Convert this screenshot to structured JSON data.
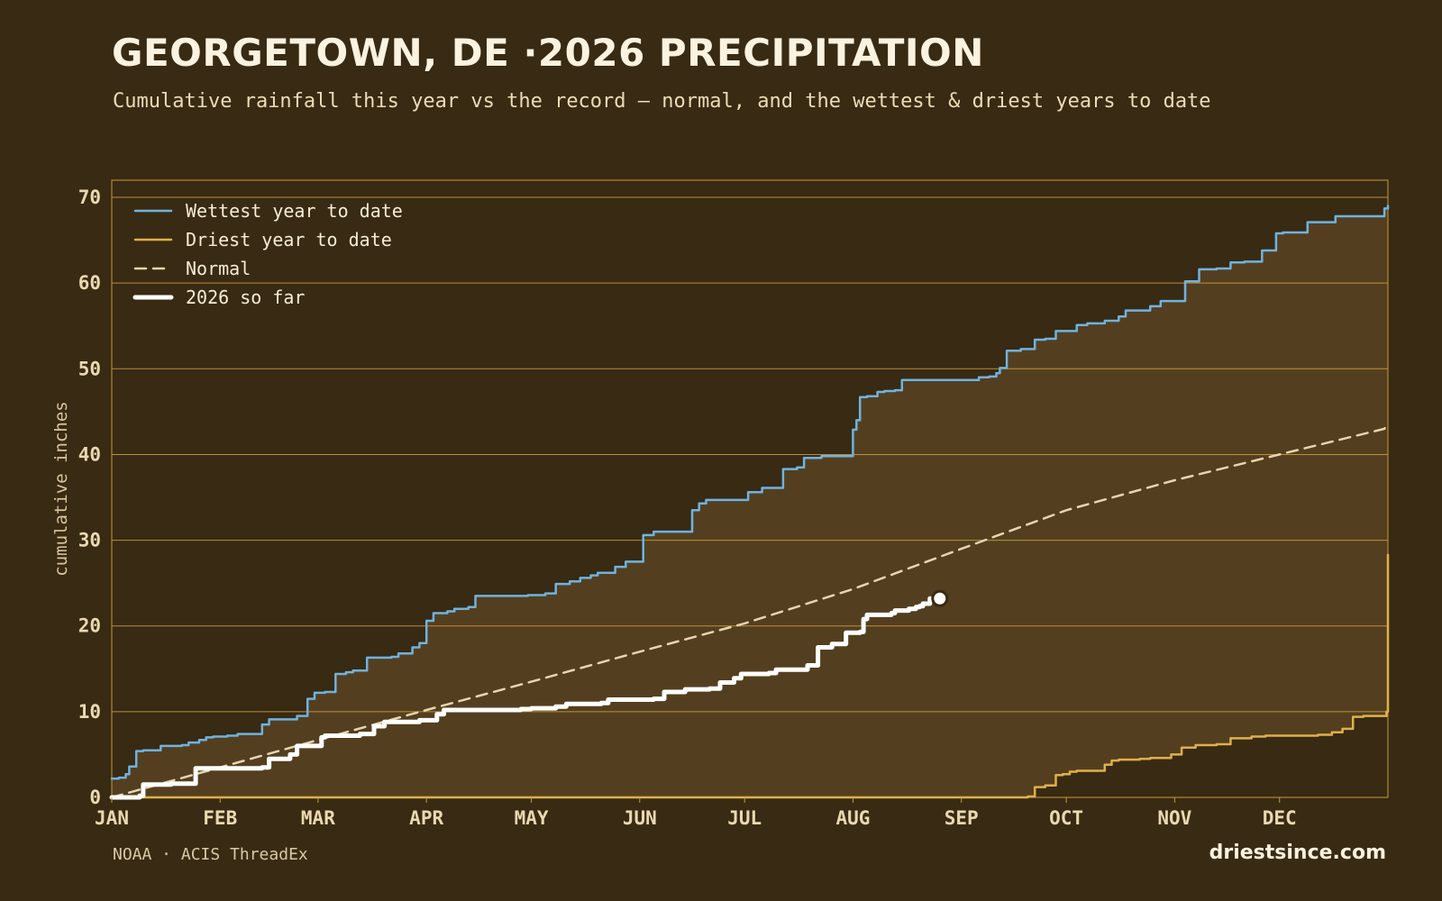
{
  "header": {
    "title": "GEORGETOWN, DE ·2026 PRECIPITATION",
    "subtitle": "Cumulative rainfall this year vs the record — normal, and the wettest & driest years to date"
  },
  "footer": {
    "source": "NOAA · ACIS ThreadEx",
    "site": "driestsince.com"
  },
  "colors": {
    "background": "#382a13",
    "band_fill": "#533f1f",
    "grid": "#c9993a",
    "wettest": "#6fb3e0",
    "driest": "#e0b04a",
    "normal": "#e6d5ae",
    "current": "#ffffff"
  },
  "chart_data": {
    "type": "line",
    "title": "GEORGETOWN, DE ·2026 PRECIPITATION",
    "ylabel": "cumulative inches",
    "xlabel": "",
    "x_unit": "day of year",
    "xlim": [
      0,
      365
    ],
    "ylim": [
      0,
      72
    ],
    "yticks": [
      0,
      10,
      20,
      30,
      40,
      50,
      60,
      70
    ],
    "month_ticks": [
      {
        "label": "JAN",
        "day": 0
      },
      {
        "label": "FEB",
        "day": 31
      },
      {
        "label": "MAR",
        "day": 59
      },
      {
        "label": "APR",
        "day": 90
      },
      {
        "label": "MAY",
        "day": 120
      },
      {
        "label": "JUN",
        "day": 151
      },
      {
        "label": "JUL",
        "day": 181
      },
      {
        "label": "AUG",
        "day": 212
      },
      {
        "label": "SEP",
        "day": 243
      },
      {
        "label": "OCT",
        "day": 273
      },
      {
        "label": "NOV",
        "day": 304
      },
      {
        "label": "DEC",
        "day": 334
      }
    ],
    "legend_position": "top-left",
    "grid": "horizontal",
    "shaded_band": "between wettest and driest",
    "series": [
      {
        "name": "Wettest year to date",
        "style": "step",
        "x": [
          0,
          2,
          4,
          5,
          7,
          9,
          13,
          14,
          20,
          22,
          25,
          27,
          29,
          33,
          36,
          39,
          43,
          45,
          48,
          53,
          56,
          58,
          61,
          64,
          67,
          69,
          73,
          80,
          82,
          86,
          88,
          90,
          92,
          96,
          98,
          102,
          104,
          119,
          124,
          127,
          131,
          134,
          137,
          139,
          144,
          147,
          152,
          154,
          155,
          157,
          166,
          168,
          170,
          182,
          186,
          192,
          196,
          198,
          203,
          212,
          213,
          214,
          216,
          219,
          221,
          224,
          226,
          243,
          248,
          251,
          253,
          254,
          256,
          260,
          264,
          267,
          270,
          276,
          279,
          284,
          288,
          290,
          292,
          297,
          300,
          307,
          311,
          316,
          320,
          324,
          329,
          333,
          335,
          339,
          342,
          350,
          351,
          354,
          362,
          364,
          365
        ],
        "values": [
          2.2,
          2.3,
          2.7,
          3.6,
          5.4,
          5.5,
          5.5,
          6.0,
          6.1,
          6.4,
          6.7,
          7.0,
          7.1,
          7.2,
          7.4,
          7.4,
          8.5,
          9.1,
          9.1,
          9.5,
          11.5,
          12.2,
          12.3,
          14.4,
          14.6,
          14.8,
          16.3,
          16.4,
          16.8,
          17.5,
          18.0,
          20.6,
          21.5,
          21.7,
          22.0,
          22.2,
          23.5,
          23.6,
          23.8,
          24.9,
          25.2,
          25.6,
          25.9,
          26.2,
          26.9,
          27.5,
          30.6,
          30.6,
          31.0,
          31.0,
          33.5,
          34.3,
          34.7,
          35.6,
          36.1,
          38.3,
          38.5,
          39.6,
          39.8,
          42.9,
          44.0,
          46.7,
          46.8,
          47.3,
          47.4,
          47.5,
          48.7,
          48.7,
          49.0,
          49.1,
          49.5,
          50.1,
          52.1,
          52.3,
          53.4,
          53.5,
          54.4,
          55.1,
          55.3,
          55.6,
          56.1,
          56.8,
          56.8,
          57.3,
          57.9,
          60.2,
          61.6,
          61.7,
          62.4,
          62.5,
          63.8,
          65.8,
          65.9,
          65.9,
          67.1,
          67.8,
          67.8,
          67.8,
          67.8,
          68.7,
          69.0
        ]
      },
      {
        "name": "Driest year to date",
        "style": "step",
        "x": [
          0,
          243,
          262,
          264,
          267,
          270,
          272,
          274,
          276,
          282,
          284,
          286,
          288,
          294,
          297,
          303,
          306,
          310,
          316,
          320,
          326,
          330,
          345,
          349,
          352,
          355,
          358,
          364,
          364.6,
          365
        ],
        "values": [
          0,
          0,
          0.1,
          1.2,
          1.4,
          2.6,
          2.7,
          3.0,
          3.1,
          3.1,
          3.8,
          4.3,
          4.4,
          4.5,
          4.6,
          5.0,
          5.8,
          6.1,
          6.2,
          6.9,
          7.1,
          7.2,
          7.3,
          7.6,
          8.0,
          9.4,
          9.5,
          9.5,
          10.0,
          28.3
        ]
      },
      {
        "name": "Normal",
        "style": "dashed",
        "x": [
          0,
          31,
          59,
          90,
          120,
          151,
          181,
          212,
          243,
          273,
          304,
          334,
          364,
          365
        ],
        "values": [
          0,
          3.5,
          6.7,
          10.2,
          13.5,
          17.0,
          20.3,
          24.3,
          29.0,
          33.5,
          37.0,
          40.0,
          43.0,
          43.7
        ]
      },
      {
        "name": "2026 so far",
        "style": "step",
        "x": [
          0,
          8,
          9,
          17,
          24,
          43,
          45,
          51,
          53,
          60,
          61,
          71,
          75,
          78,
          81,
          88,
          93,
          95,
          117,
          120,
          127,
          130,
          140,
          142,
          155,
          158,
          164,
          171,
          174,
          178,
          180,
          188,
          190,
          199,
          202,
          206,
          210,
          214,
          215,
          216,
          217,
          223,
          224,
          228,
          230,
          231,
          232,
          234
        ],
        "values": [
          0,
          0.2,
          1.5,
          1.6,
          3.4,
          3.5,
          4.5,
          5.0,
          6.0,
          7.0,
          7.2,
          7.4,
          8.3,
          8.8,
          8.8,
          9.0,
          9.7,
          10.2,
          10.3,
          10.4,
          10.6,
          10.9,
          11.0,
          11.4,
          11.5,
          12.3,
          12.6,
          12.7,
          13.4,
          13.9,
          14.4,
          14.5,
          14.9,
          15.4,
          17.5,
          17.9,
          19.2,
          19.3,
          20.8,
          21.3,
          21.3,
          21.5,
          21.8,
          22.0,
          22.2,
          22.3,
          22.6,
          23.2
        ]
      }
    ],
    "current_marker": {
      "x": 234,
      "value": 23.2
    }
  }
}
